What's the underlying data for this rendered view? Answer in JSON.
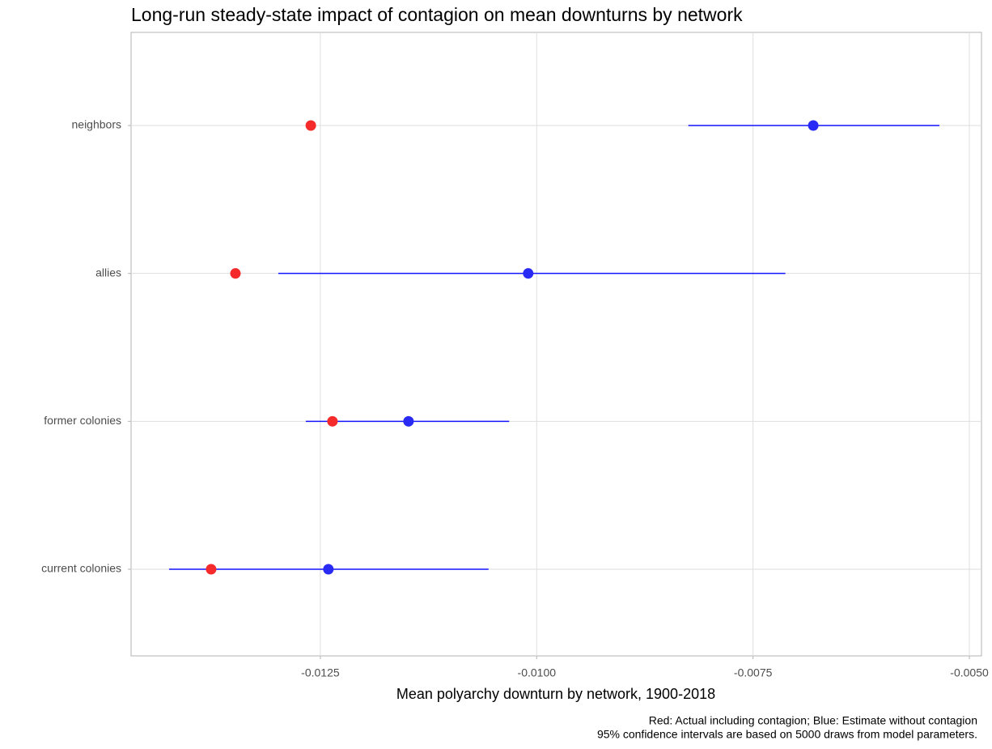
{
  "chart_data": {
    "type": "dot-interval",
    "title": "Long-run steady-state impact of contagion on mean downturns by network",
    "x_label": "Mean polyarchy downturn by network, 1900-2018",
    "caption": [
      "Red: Actual including contagion; Blue: Estimate without contagion",
      "95% confidence intervals are based on 5000 draws from model parameters."
    ],
    "categories": [
      "neighbors",
      "allies",
      "former colonies",
      "current colonies"
    ],
    "series": [
      {
        "color": "#f52a2a",
        "values": [
          -0.01261,
          -0.013481,
          -0.01236,
          -0.013762
        ]
      },
      {
        "color": "#2a2af5",
        "line_color": "#1414ff",
        "values": [
          -0.006804,
          -0.010098,
          -0.011481,
          -0.012407
        ],
        "lower": [
          -0.008248,
          -0.012986,
          -0.012668,
          -0.014248
        ],
        "upper": [
          -0.005346,
          -0.007126,
          -0.010318,
          -0.010556
        ]
      }
    ],
    "xlim": [
      -0.014687,
      -0.00486
    ],
    "xticks": [
      -0.0125,
      {
        "value": -0.01,
        "label": "-0.0100"
      },
      -0.0075,
      {
        "value": -0.005,
        "label": "-0.0050"
      }
    ],
    "grid": true
  }
}
